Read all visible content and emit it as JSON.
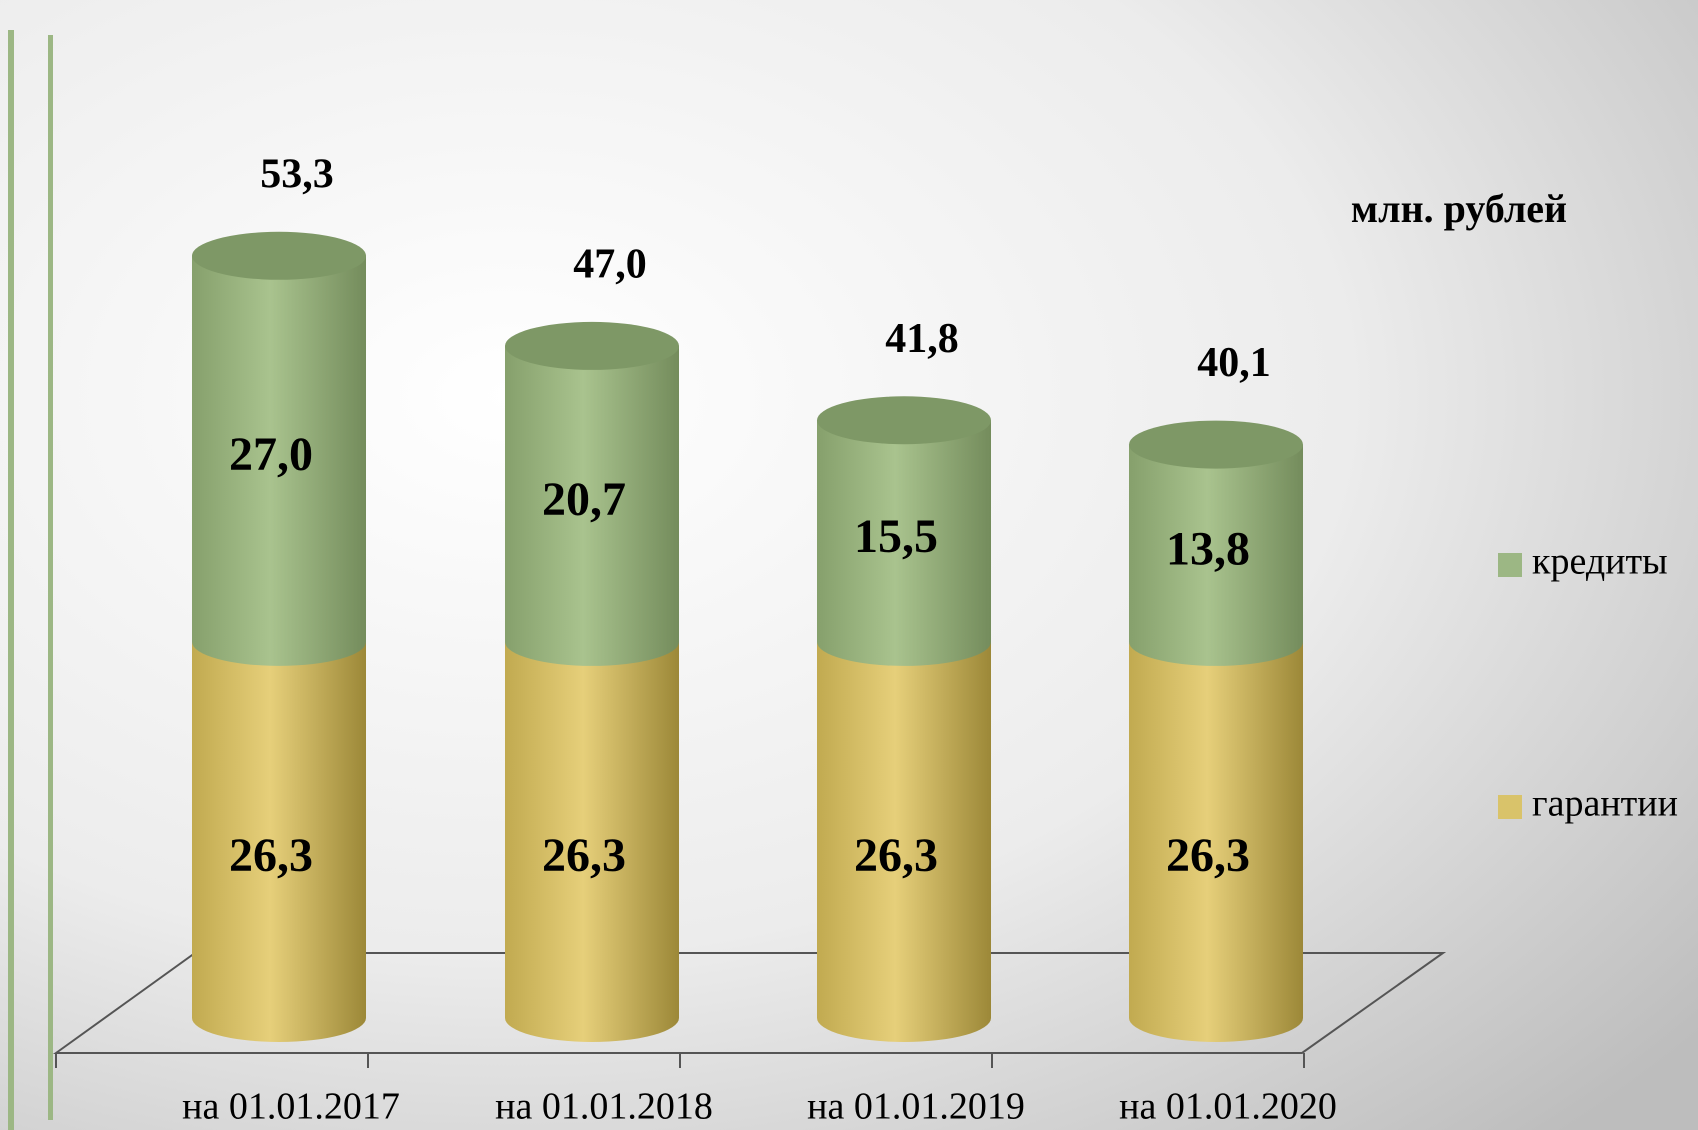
{
  "chart_data": {
    "type": "cylinder-stacked",
    "unit_label": "млн. рублей",
    "categories": [
      "на 01.01.2017",
      "на 01.01.2018",
      "на 01.01.2019",
      "на 01.01.2020"
    ],
    "series": [
      {
        "name": "гарантии",
        "color": "#d9c36a",
        "values": [
          26.3,
          26.3,
          26.3,
          26.3
        ],
        "value_labels": [
          "26,3",
          "26,3",
          "26,3",
          "26,3"
        ]
      },
      {
        "name": "кредиты",
        "color": "#9cb784",
        "values": [
          27.0,
          20.7,
          15.5,
          13.8
        ],
        "value_labels": [
          "27,0",
          "20,7",
          "15,5",
          "13,8"
        ]
      }
    ],
    "totals": [
      53.3,
      47.0,
      41.8,
      40.1
    ],
    "total_labels": [
      "53,3",
      "47,0",
      "41,8",
      "40,1"
    ],
    "ylim": [
      0,
      60
    ]
  }
}
